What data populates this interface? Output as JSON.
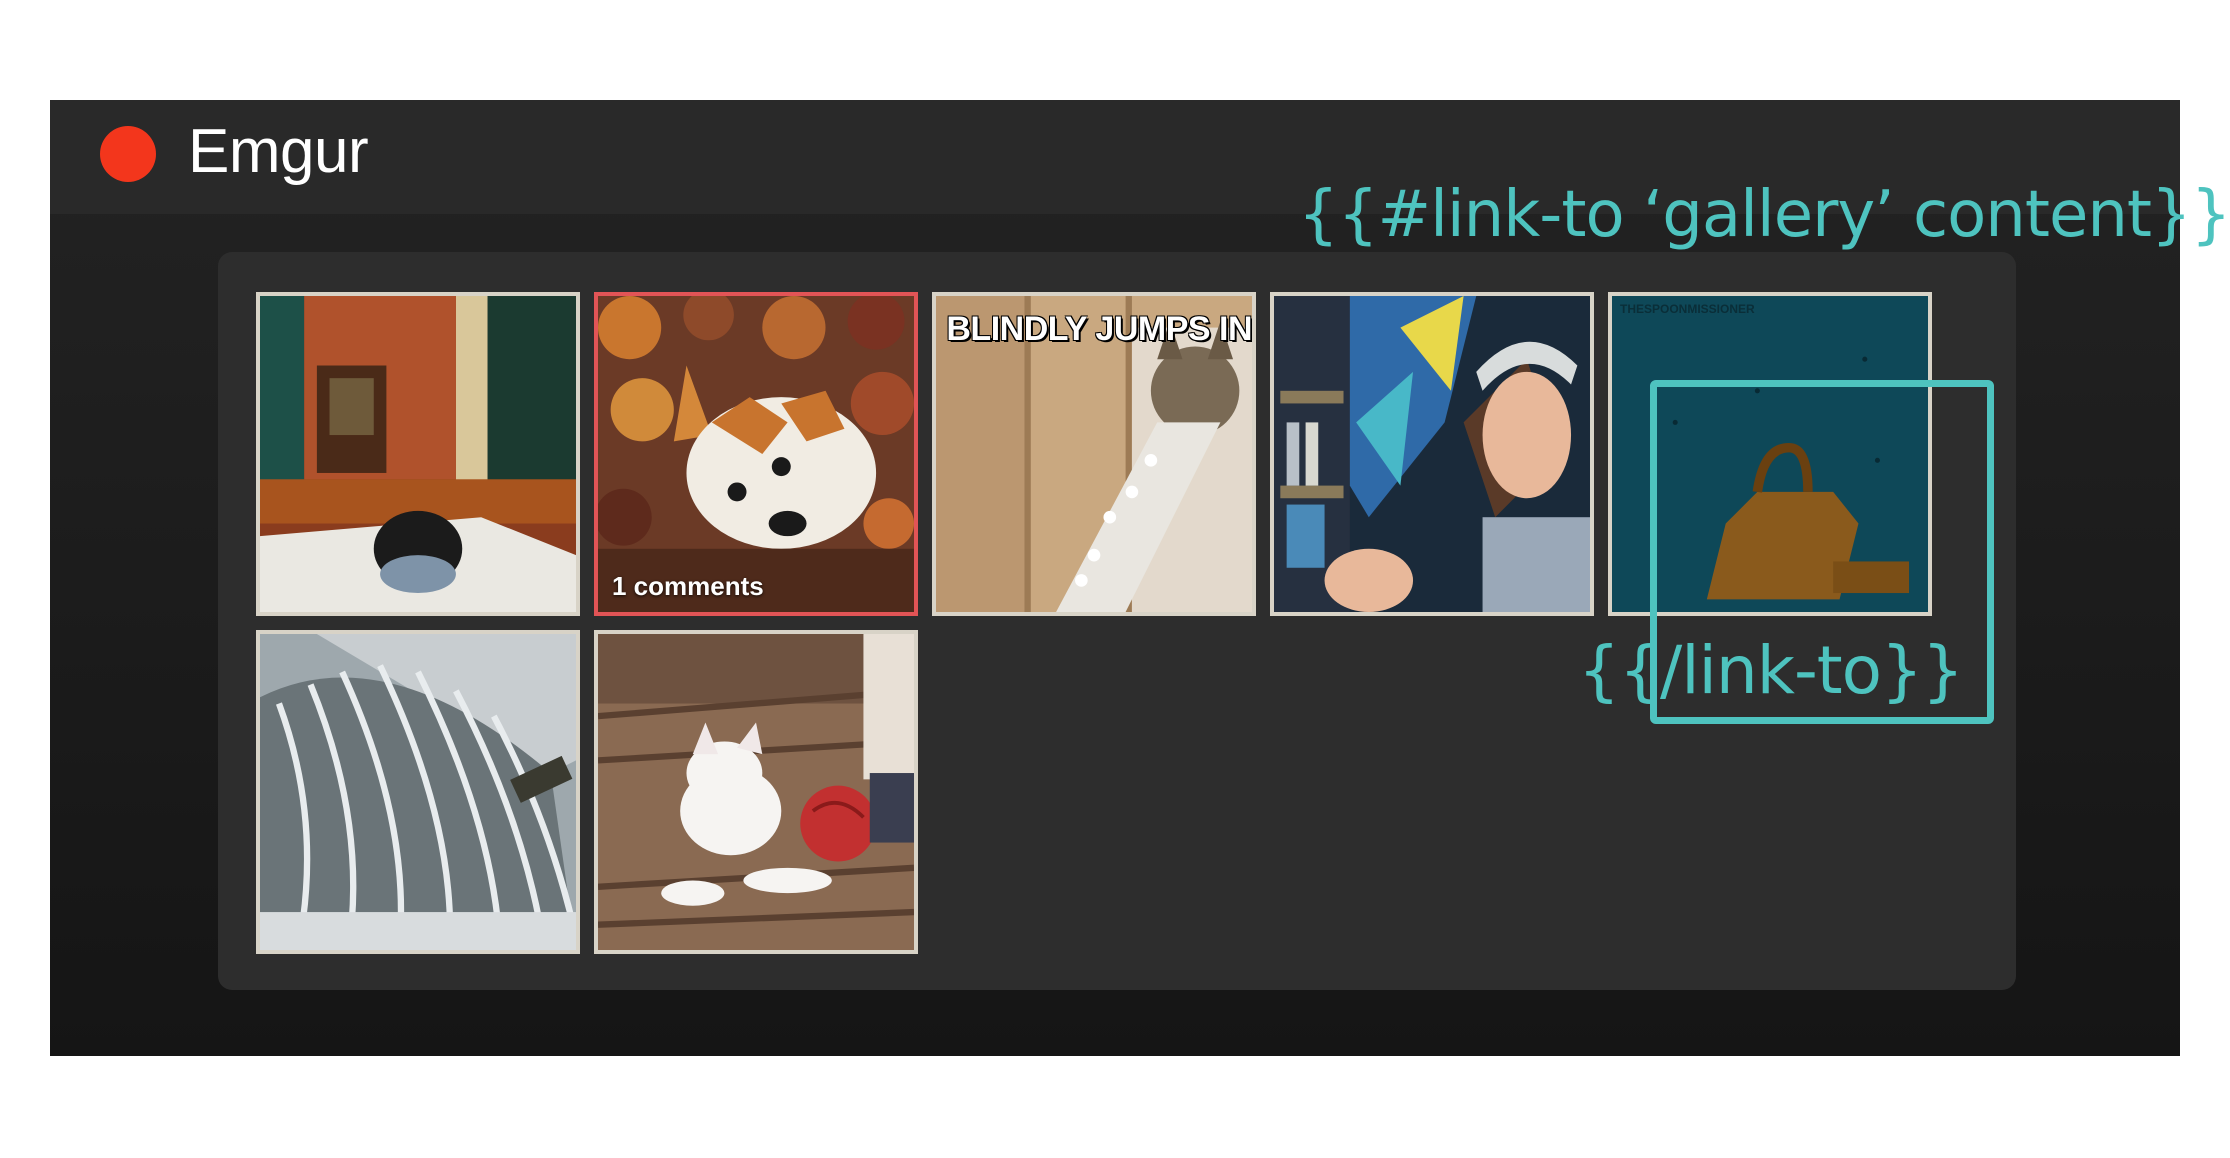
{
  "app": {
    "title": "Emgur",
    "logo_color": "#f3361c"
  },
  "gallery": {
    "items": [
      {
        "name": "dog-on-pillow",
        "caption": "",
        "overlay": "",
        "selected": false
      },
      {
        "name": "corgi-in-leaves",
        "caption": "1 comments",
        "overlay": "",
        "selected": true
      },
      {
        "name": "cat-packing-peanuts",
        "caption": "",
        "overlay": "BLINDLY JUMPS IN",
        "selected": false
      },
      {
        "name": "girl-reaction",
        "caption": "",
        "overlay": "",
        "selected": false
      },
      {
        "name": "teal-cartoon-bag",
        "caption": "",
        "overlay": "",
        "watermark": "THESPOONMISSIONER",
        "selected": false
      },
      {
        "name": "waterfall-dam",
        "caption": "",
        "overlay": "",
        "selected": false
      },
      {
        "name": "kitten-yarn",
        "caption": "",
        "overlay": "",
        "selected": false
      }
    ]
  },
  "annotations": {
    "open_tag": "{{#link-to ‘gallery’ content}}",
    "close_tag": "{{/link-to}}",
    "color": "#4ec3bf"
  },
  "colors": {
    "header_bg": "#292929",
    "panel_bg": "#2d2d2d",
    "tile_border": "#d8d3c7",
    "selected_border": "#e25456"
  }
}
